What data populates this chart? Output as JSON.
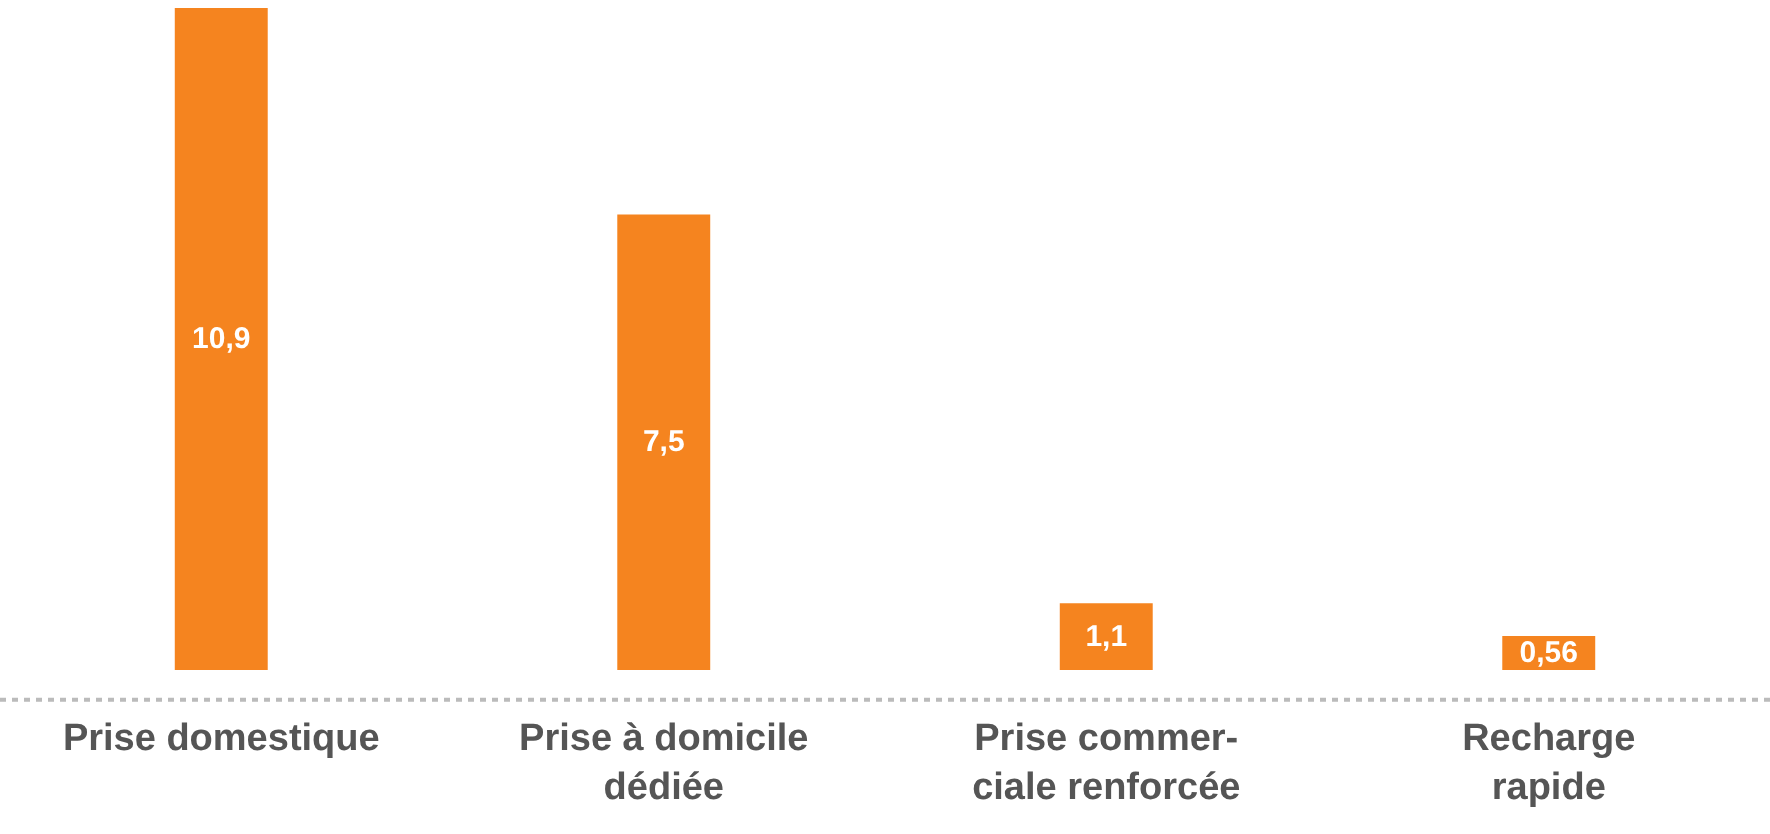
{
  "chart_data": {
    "type": "bar",
    "categories": [
      "Prise domestique",
      "Prise à domicile\ndédiée",
      "Prise commer-\nciale renforcée",
      "Recharge\nrapide"
    ],
    "values": [
      10.9,
      7.5,
      1.1,
      0.56
    ],
    "value_labels": [
      "10,9",
      "7,5",
      "1,1",
      "0,56"
    ],
    "color": "#f5841f"
  }
}
